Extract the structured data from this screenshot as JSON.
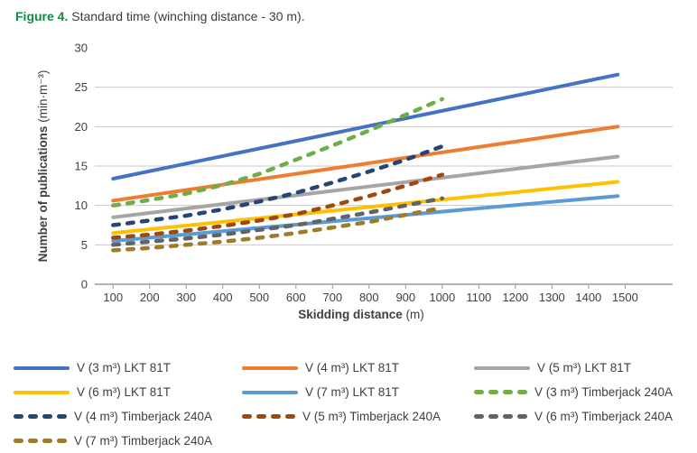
{
  "title": {
    "figure_label": "Figure 4.",
    "rest": " Standard time (winching distance - 30 m).",
    "figure_label_color": "#128a43",
    "text_color": "#3b3b3b"
  },
  "chart_data": {
    "type": "line",
    "title": "Standard time (winching distance - 30 m)",
    "xlabel_bold": "Skidding distance",
    "xlabel_unit": " (m)",
    "ylabel_bold": "Number of publications",
    "ylabel_unit": " (min·m⁻³)",
    "xlim": [
      100,
      1500
    ],
    "ylim": [
      0,
      30
    ],
    "xticks": [
      100,
      200,
      300,
      400,
      500,
      600,
      700,
      800,
      900,
      1000,
      1100,
      1200,
      1300,
      1400,
      1500
    ],
    "yticks": [
      0,
      5,
      10,
      15,
      20,
      25,
      30
    ],
    "gridlines": [
      5,
      10,
      15,
      20,
      25
    ],
    "grid_color": "#c9c9c9",
    "axis_color": "#9b9b9b",
    "text_color": "#3f3f3f",
    "legend_position": "bottom",
    "series": [
      {
        "name": "V (3 m³) LKT 81T",
        "color": "#4472C4",
        "dash": false,
        "x": [
          100,
          1480
        ],
        "values": [
          13.4,
          26.6
        ]
      },
      {
        "name": "V (4 m³) LKT 81T",
        "color": "#ED7D31",
        "dash": false,
        "x": [
          100,
          1480
        ],
        "values": [
          10.6,
          20.0
        ]
      },
      {
        "name": "V (5 m³) LKT 81T",
        "color": "#A5A5A5",
        "dash": false,
        "x": [
          100,
          1480
        ],
        "values": [
          8.5,
          16.2
        ]
      },
      {
        "name": "V (6 m³) LKT 81T",
        "color": "#FFC000",
        "dash": false,
        "x": [
          100,
          1480
        ],
        "values": [
          6.5,
          13.0
        ]
      },
      {
        "name": "V (7 m³) LKT 81T",
        "color": "#5B9BD5",
        "dash": false,
        "x": [
          100,
          1480
        ],
        "values": [
          5.5,
          11.2
        ]
      },
      {
        "name": "V (3 m³) Timberjack 240A",
        "color": "#70AD47",
        "dash": true,
        "x": [
          100,
          200,
          300,
          400,
          500,
          600,
          700,
          800,
          900,
          1000
        ],
        "values": [
          10.0,
          10.7,
          11.5,
          12.6,
          14.0,
          15.8,
          17.6,
          19.5,
          21.5,
          23.5
        ]
      },
      {
        "name": "V (4 m³) Timberjack 240A",
        "color": "#264478",
        "dash": true,
        "x": [
          100,
          200,
          300,
          400,
          500,
          600,
          700,
          800,
          900,
          1000
        ],
        "values": [
          7.5,
          8.1,
          8.7,
          9.5,
          10.5,
          11.6,
          12.9,
          14.3,
          15.8,
          17.5
        ]
      },
      {
        "name": "V (5 m³) Timberjack 240A",
        "color": "#9E480E",
        "dash": true,
        "x": [
          100,
          200,
          300,
          400,
          500,
          600,
          700,
          800,
          900,
          1000
        ],
        "values": [
          5.9,
          6.3,
          6.8,
          7.4,
          8.1,
          8.9,
          10.0,
          11.2,
          12.5,
          13.9
        ]
      },
      {
        "name": "V (6 m³) Timberjack 240A",
        "color": "#636363",
        "dash": true,
        "x": [
          100,
          200,
          300,
          400,
          500,
          600,
          700,
          800,
          900,
          1000
        ],
        "values": [
          5.0,
          5.4,
          5.8,
          6.3,
          6.9,
          7.5,
          8.3,
          9.1,
          10.0,
          10.9
        ]
      },
      {
        "name": "V (7 m³) Timberjack 240A",
        "color": "#9E7C27",
        "dash": true,
        "x": [
          100,
          200,
          300,
          400,
          500,
          600,
          700,
          800,
          900,
          1000
        ],
        "values": [
          4.3,
          4.6,
          5.0,
          5.4,
          5.9,
          6.5,
          7.2,
          7.9,
          8.8,
          9.7
        ]
      }
    ]
  }
}
